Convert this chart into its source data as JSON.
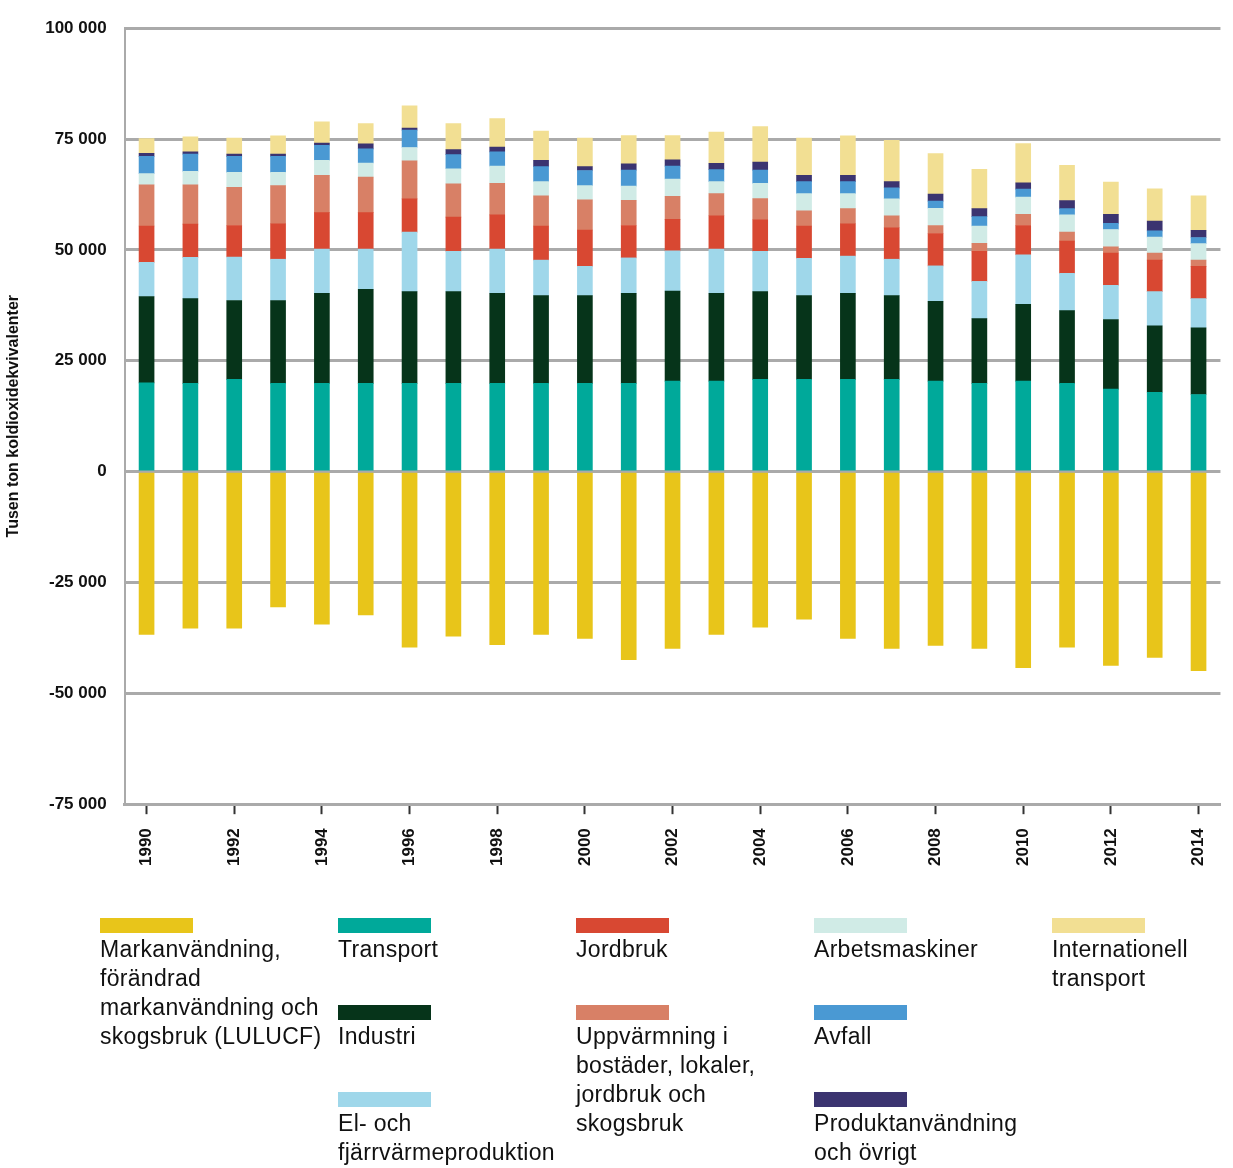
{
  "chart_data": {
    "type": "bar",
    "stacked": true,
    "ylabel": "Tusen ton koldioxidekvivalenter",
    "categories": [
      "1990",
      null,
      "1992",
      null,
      "1994",
      null,
      "1996",
      null,
      "1998",
      null,
      "2000",
      null,
      "2002",
      null,
      "2004",
      null,
      "2006",
      null,
      "2008",
      null,
      "2010",
      null,
      "2012",
      null,
      "2014"
    ],
    "ylim": [
      -75000,
      100000
    ],
    "yticks": [
      {
        "value": -75000,
        "label": "-75 000"
      },
      {
        "value": -50000,
        "label": "-50 000"
      },
      {
        "value": -25000,
        "label": "-25 000"
      },
      0,
      {
        "value": 25000,
        "label": "25 000"
      },
      {
        "value": 50000,
        "label": "50 000"
      },
      {
        "value": 75000,
        "label": "75 000"
      },
      {
        "value": 100000,
        "label": "100 000"
      }
    ],
    "grid": "y",
    "legend": "bottom",
    "series": [
      {
        "name": "Markanvändning, förändrad markanvändning och skogsbruk (LULUCF)",
        "color": "#e8c51a",
        "values": [
          -36700,
          -35300,
          -35300,
          -30500,
          -34400,
          -32300,
          -39600,
          -37100,
          -39000,
          -36700,
          -37600,
          -42400,
          -39900,
          -36700,
          -35100,
          -33300,
          -37600,
          -39900,
          -39200,
          -39900,
          -44200,
          -39600,
          -43700,
          -41900,
          -44900
        ]
      },
      {
        "name": "Transport",
        "color": "#00a99a",
        "values": [
          20000,
          19900,
          20800,
          19900,
          19900,
          19900,
          19900,
          19900,
          19900,
          19900,
          19900,
          19900,
          20400,
          20400,
          20800,
          20800,
          20800,
          20800,
          20400,
          19900,
          20400,
          19900,
          18600,
          17900,
          17400
        ]
      },
      {
        "name": "Industri",
        "color": "#06341a",
        "values": [
          19500,
          19100,
          17800,
          18700,
          20300,
          21200,
          20700,
          20700,
          20300,
          19800,
          19800,
          20300,
          20300,
          19800,
          19800,
          18900,
          19400,
          18900,
          18000,
          14600,
          17300,
          16400,
          15700,
          15000,
          15000
        ]
      },
      {
        "name": "El- och fjärrvärmeproduktion",
        "color": "#9fd7ea",
        "values": [
          7700,
          9300,
          9800,
          9300,
          10000,
          9100,
          13400,
          9100,
          10000,
          8000,
          6600,
          8000,
          9100,
          10000,
          9100,
          8400,
          8400,
          8200,
          8000,
          8400,
          11200,
          8400,
          7700,
          7700,
          6600
        ]
      },
      {
        "name": "Jordbruk",
        "color": "#d84832",
        "values": [
          8200,
          7500,
          7100,
          8000,
          8200,
          8200,
          7500,
          7700,
          7700,
          7700,
          8200,
          7300,
          7100,
          7500,
          7100,
          7300,
          7300,
          7100,
          7300,
          6800,
          6600,
          7300,
          7300,
          7100,
          7300
        ]
      },
      {
        "name": "Uppvärmning i bostäder, lokaler, jordbruk och skogsbruk",
        "color": "#d88066",
        "values": [
          9300,
          8900,
          8600,
          8600,
          8400,
          8000,
          8600,
          7500,
          7100,
          6800,
          6800,
          5700,
          5200,
          5000,
          4800,
          3400,
          3400,
          2700,
          1800,
          1800,
          2500,
          2000,
          1400,
          1600,
          1400
        ]
      },
      {
        "name": "Arbetsmaskiner",
        "color": "#d0ebe6",
        "values": [
          2500,
          3000,
          3400,
          3000,
          3400,
          3200,
          3000,
          3400,
          3900,
          3200,
          3200,
          3200,
          3900,
          2700,
          3400,
          3900,
          3400,
          3800,
          3900,
          3900,
          3900,
          3900,
          3900,
          3600,
          3700
        ]
      },
      {
        "name": "Avfall",
        "color": "#4a99d3",
        "values": [
          3900,
          3900,
          3600,
          3600,
          3400,
          3200,
          3900,
          3200,
          3200,
          3400,
          3400,
          3600,
          2900,
          2700,
          3000,
          2700,
          2700,
          2500,
          1600,
          2100,
          1800,
          1400,
          1400,
          1400,
          1400
        ]
      },
      {
        "name": "Produktanvändning och övrigt",
        "color": "#3b3470",
        "values": [
          700,
          500,
          500,
          500,
          500,
          1100,
          500,
          1100,
          1100,
          1400,
          900,
          1400,
          1400,
          1400,
          1800,
          1400,
          1400,
          1400,
          1600,
          1800,
          1400,
          1800,
          2000,
          2200,
          1600
        ]
      },
      {
        "name": "Internationell transport",
        "color": "#f2df93",
        "values": [
          3300,
          3400,
          3600,
          4100,
          4800,
          4600,
          5000,
          5900,
          6400,
          6600,
          6400,
          6400,
          5500,
          7100,
          8000,
          8400,
          8900,
          9300,
          9100,
          8900,
          8900,
          8000,
          7300,
          7300,
          7800
        ]
      }
    ]
  }
}
